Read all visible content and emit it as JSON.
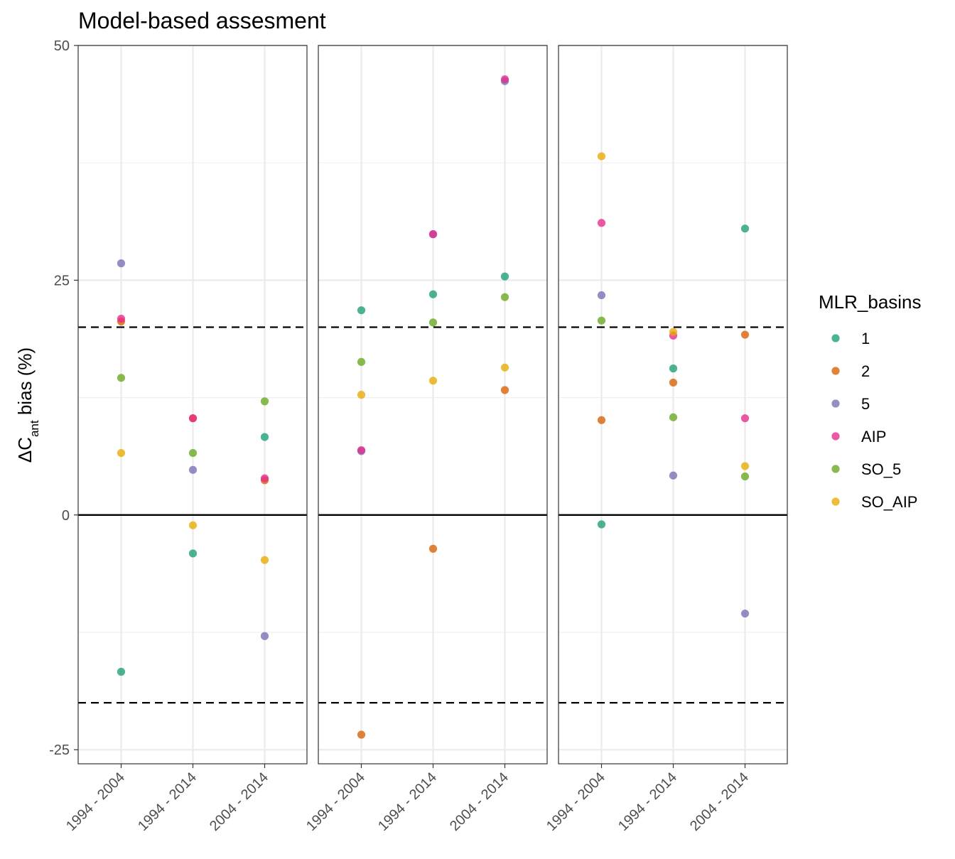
{
  "chart_data": {
    "type": "scatter",
    "title": "Model-based assesment",
    "ylabel": {
      "main": "ΔC",
      "sub": "ant",
      "rest": " bias (%)"
    },
    "xlabel": "",
    "ylim": [
      -26.5,
      50
    ],
    "yticks": [
      -25,
      0,
      25,
      50
    ],
    "categories": [
      "1994 - 2004",
      "1994 - 2014",
      "2004 - 2014"
    ],
    "reference_lines": {
      "solid": [
        0
      ],
      "dashed": [
        20,
        -20
      ]
    },
    "grid": true,
    "legend": {
      "title": "MLR_basins",
      "placement": "right"
    },
    "series": [
      {
        "name": "1",
        "color": "#1b9e77"
      },
      {
        "name": "2",
        "color": "#d95f02"
      },
      {
        "name": "5",
        "color": "#7570b3"
      },
      {
        "name": "AIP",
        "color": "#e7298a"
      },
      {
        "name": "SO_5",
        "color": "#66a61e"
      },
      {
        "name": "SO_AIP",
        "color": "#e6ab02"
      }
    ],
    "panels": [
      {
        "points": {
          "1": [
            -16.7,
            -4.1,
            8.3
          ],
          "2": [
            20.6,
            10.3,
            3.7
          ],
          "5": [
            26.8,
            4.8,
            -12.9
          ],
          "AIP": [
            20.9,
            10.3,
            3.9
          ],
          "SO_5": [
            14.6,
            6.6,
            12.1
          ],
          "SO_AIP": [
            6.6,
            -1.1,
            -4.8
          ]
        }
      },
      {
        "points": {
          "1": [
            21.8,
            23.5,
            25.4
          ],
          "2": [
            -23.4,
            -3.6,
            13.3
          ],
          "5": [
            6.8,
            29.9,
            46.2
          ],
          "AIP": [
            6.9,
            29.9,
            46.4
          ],
          "SO_5": [
            16.3,
            20.5,
            23.2
          ],
          "SO_AIP": [
            12.8,
            14.3,
            15.7
          ]
        }
      },
      {
        "points": {
          "1": [
            -1.0,
            15.6,
            30.5
          ],
          "2": [
            10.1,
            14.1,
            19.2
          ],
          "5": [
            23.4,
            4.2,
            -10.5
          ],
          "AIP": [
            31.1,
            19.1,
            10.3
          ],
          "SO_5": [
            20.7,
            10.4,
            4.1
          ],
          "SO_AIP": [
            38.2,
            19.5,
            5.2
          ]
        }
      }
    ]
  }
}
